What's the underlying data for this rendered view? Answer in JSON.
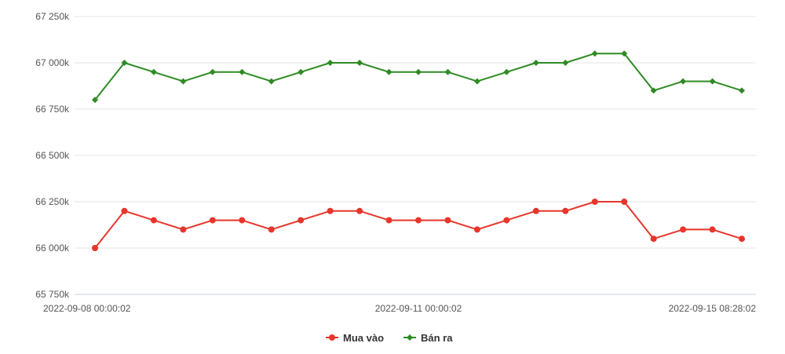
{
  "chart_data": {
    "type": "line",
    "title": "",
    "xlabel": "",
    "ylabel": "",
    "ylim": [
      65750,
      67250
    ],
    "y_ticks": [
      {
        "value": 67250,
        "label": "67 250k"
      },
      {
        "value": 67000,
        "label": "67 000k"
      },
      {
        "value": 66750,
        "label": "66 750k"
      },
      {
        "value": 66500,
        "label": "66 500k"
      },
      {
        "value": 66250,
        "label": "66 250k"
      },
      {
        "value": 66000,
        "label": "66 000k"
      },
      {
        "value": 65750,
        "label": "65 750k"
      }
    ],
    "x_tick_labels": [
      {
        "index": 0,
        "label": "2022-09-08 00:00:02"
      },
      {
        "index": 11,
        "label": "2022-09-11 00:00:02"
      },
      {
        "index": 22,
        "label": "2022-09-15 08:28:02"
      }
    ],
    "grid": true,
    "legend_position": "bottom-center",
    "series": [
      {
        "name": "Mua vào",
        "color": "#e8352b",
        "marker": "circle",
        "values": [
          66000,
          66200,
          66150,
          66100,
          66150,
          66150,
          66100,
          66150,
          66200,
          66200,
          66150,
          66150,
          66150,
          66100,
          66150,
          66200,
          66200,
          66250,
          66250,
          66050,
          66100,
          66100,
          66050
        ]
      },
      {
        "name": "Bán ra",
        "color": "#2e8b23",
        "marker": "diamond",
        "values": [
          66800,
          67000,
          66950,
          66900,
          66950,
          66950,
          66900,
          66950,
          67000,
          67000,
          66950,
          66950,
          66950,
          66900,
          66950,
          67000,
          67000,
          67050,
          67050,
          66850,
          66900,
          66900,
          66850
        ]
      }
    ]
  }
}
